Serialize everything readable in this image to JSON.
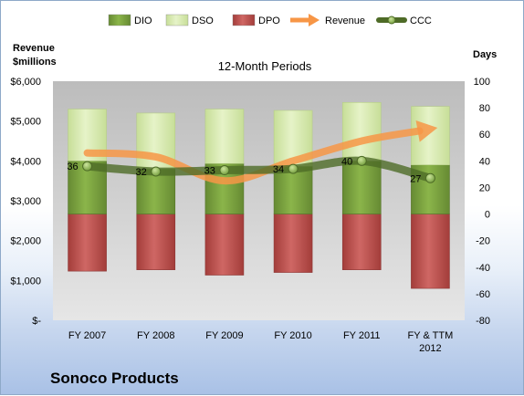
{
  "company": "Sonoco Products",
  "chart_data": {
    "type": "bar",
    "subtitle": "12-Month Periods",
    "left_axis": {
      "label_line1": "Revenue",
      "label_line2": "$millions",
      "range": [
        0,
        6000
      ],
      "ticks": [
        "$-",
        "$1,000",
        "$2,000",
        "$3,000",
        "$4,000",
        "$5,000",
        "$6,000"
      ]
    },
    "right_axis": {
      "label": "Days",
      "range": [
        -80,
        100
      ],
      "ticks": [
        "-80",
        "-60",
        "-40",
        "-20",
        "0",
        "20",
        "40",
        "60",
        "80",
        "100"
      ]
    },
    "categories": [
      [
        "FY 2007"
      ],
      [
        "FY 2008"
      ],
      [
        "FY 2009"
      ],
      [
        "FY 2010"
      ],
      [
        "FY 2011"
      ],
      [
        "FY & TTM",
        "2012"
      ]
    ],
    "series": [
      {
        "name": "DIO",
        "axis": "days",
        "values": [
          40,
          34,
          38,
          36,
          40,
          37
        ],
        "color": "#7aa33e"
      },
      {
        "name": "DSO",
        "axis": "days",
        "values": [
          39,
          42,
          41,
          42,
          44,
          44
        ],
        "color": "#d8ecb0"
      },
      {
        "name": "DPO",
        "axis": "days",
        "values": [
          -43,
          -42,
          -46,
          -44,
          -42,
          -56
        ],
        "color": "#c0504d"
      },
      {
        "name": "Revenue",
        "axis": "revenue",
        "values": [
          4200,
          4100,
          3500,
          4000,
          4500,
          4800
        ],
        "color": "#f79646"
      },
      {
        "name": "CCC",
        "axis": "days",
        "values": [
          36,
          32,
          33,
          34,
          40,
          27
        ],
        "color": "#4e6b27"
      }
    ],
    "grid": false,
    "legend_position": "top"
  }
}
